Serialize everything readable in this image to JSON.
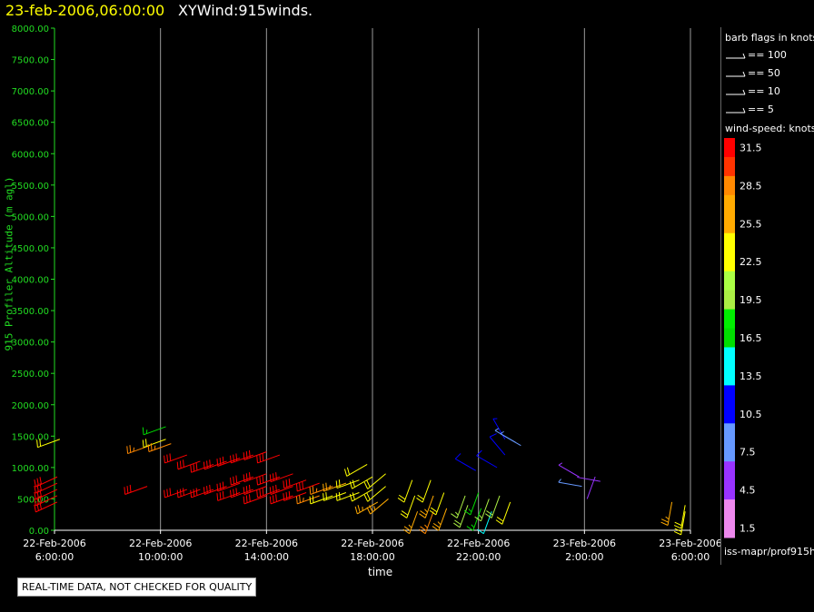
{
  "header": {
    "date": "23-feb-2006,06:00:00",
    "product": "XYWind:915winds."
  },
  "chart_data": {
    "type": "scatter",
    "ylabel": "915 Profiler Altitude (m agl)",
    "xlabel": "time",
    "ylim": [
      0,
      8000
    ],
    "y_ticks": [
      "0.00",
      "500.00",
      "1000.00",
      "1500.00",
      "2000.00",
      "2500.00",
      "3000.00",
      "3500.00",
      "4000.00",
      "4500.00",
      "5000.00",
      "5500.00",
      "6000.00",
      "6500.00",
      "7000.00",
      "7500.00",
      "8000.00"
    ],
    "x_ticks": [
      {
        "date": "22-Feb-2006",
        "time": "6:00:00"
      },
      {
        "date": "22-Feb-2006",
        "time": "10:00:00"
      },
      {
        "date": "22-Feb-2006",
        "time": "14:00:00"
      },
      {
        "date": "22-Feb-2006",
        "time": "18:00:00"
      },
      {
        "date": "22-Feb-2006",
        "time": "22:00:00"
      },
      {
        "date": "23-Feb-2006",
        "time": "2:00:00"
      },
      {
        "date": "23-Feb-2006",
        "time": "6:00:00"
      }
    ],
    "grid_vertical": true,
    "wind_barbs": [
      {
        "hour": 6.2,
        "alt": 1450,
        "speed": 21,
        "dir": 250
      },
      {
        "hour": 6.1,
        "alt": 850,
        "speed": 31,
        "dir": 245
      },
      {
        "hour": 6.1,
        "alt": 750,
        "speed": 31,
        "dir": 245
      },
      {
        "hour": 6.1,
        "alt": 650,
        "speed": 31,
        "dir": 245
      },
      {
        "hour": 6.1,
        "alt": 550,
        "speed": 31,
        "dir": 245
      },
      {
        "hour": 6.1,
        "alt": 450,
        "speed": 31,
        "dir": 245
      },
      {
        "hour": 9.5,
        "alt": 700,
        "speed": 31,
        "dir": 250
      },
      {
        "hour": 9.6,
        "alt": 1350,
        "speed": 28,
        "dir": 250
      },
      {
        "hour": 10.2,
        "alt": 1650,
        "speed": 17,
        "dir": 250
      },
      {
        "hour": 10.2,
        "alt": 1450,
        "speed": 22,
        "dir": 250
      },
      {
        "hour": 10.4,
        "alt": 1380,
        "speed": 28,
        "dir": 250
      },
      {
        "hour": 11.0,
        "alt": 1200,
        "speed": 31,
        "dir": 250
      },
      {
        "hour": 11.5,
        "alt": 1100,
        "speed": 31,
        "dir": 250
      },
      {
        "hour": 12.0,
        "alt": 1050,
        "speed": 31,
        "dir": 250
      },
      {
        "hour": 12.5,
        "alt": 1100,
        "speed": 31,
        "dir": 250
      },
      {
        "hour": 13.0,
        "alt": 1150,
        "speed": 31,
        "dir": 250
      },
      {
        "hour": 13.5,
        "alt": 1200,
        "speed": 31,
        "dir": 250
      },
      {
        "hour": 14.0,
        "alt": 1250,
        "speed": 31,
        "dir": 250
      },
      {
        "hour": 14.5,
        "alt": 1200,
        "speed": 31,
        "dir": 250
      },
      {
        "hour": 11.0,
        "alt": 650,
        "speed": 31,
        "dir": 250
      },
      {
        "hour": 11.5,
        "alt": 650,
        "speed": 31,
        "dir": 250
      },
      {
        "hour": 12.0,
        "alt": 650,
        "speed": 31,
        "dir": 250
      },
      {
        "hour": 12.5,
        "alt": 700,
        "speed": 31,
        "dir": 250
      },
      {
        "hour": 13.0,
        "alt": 750,
        "speed": 31,
        "dir": 250
      },
      {
        "hour": 13.0,
        "alt": 600,
        "speed": 31,
        "dir": 250
      },
      {
        "hour": 13.5,
        "alt": 850,
        "speed": 31,
        "dir": 250
      },
      {
        "hour": 13.5,
        "alt": 650,
        "speed": 31,
        "dir": 250
      },
      {
        "hour": 14.0,
        "alt": 900,
        "speed": 31,
        "dir": 250
      },
      {
        "hour": 14.0,
        "alt": 700,
        "speed": 31,
        "dir": 250
      },
      {
        "hour": 14.0,
        "alt": 550,
        "speed": 31,
        "dir": 250
      },
      {
        "hour": 14.5,
        "alt": 850,
        "speed": 31,
        "dir": 250
      },
      {
        "hour": 14.5,
        "alt": 650,
        "speed": 31,
        "dir": 250
      },
      {
        "hour": 15.0,
        "alt": 900,
        "speed": 31,
        "dir": 250
      },
      {
        "hour": 15.0,
        "alt": 700,
        "speed": 31,
        "dir": 250
      },
      {
        "hour": 15.0,
        "alt": 550,
        "speed": 31,
        "dir": 250
      },
      {
        "hour": 15.5,
        "alt": 800,
        "speed": 31,
        "dir": 250
      },
      {
        "hour": 15.5,
        "alt": 600,
        "speed": 31,
        "dir": 250
      },
      {
        "hour": 16.0,
        "alt": 750,
        "speed": 31,
        "dir": 250
      },
      {
        "hour": 16.0,
        "alt": 550,
        "speed": 29,
        "dir": 250
      },
      {
        "hour": 16.5,
        "alt": 700,
        "speed": 28,
        "dir": 250
      },
      {
        "hour": 16.5,
        "alt": 550,
        "speed": 22,
        "dir": 250
      },
      {
        "hour": 17.0,
        "alt": 750,
        "speed": 26,
        "dir": 250
      },
      {
        "hour": 17.0,
        "alt": 600,
        "speed": 23,
        "dir": 250
      },
      {
        "hour": 17.5,
        "alt": 800,
        "speed": 22,
        "dir": 250
      },
      {
        "hour": 17.5,
        "alt": 600,
        "speed": 22,
        "dir": 250
      },
      {
        "hour": 17.8,
        "alt": 1050,
        "speed": 22,
        "dir": 240
      },
      {
        "hour": 18.0,
        "alt": 850,
        "speed": 22,
        "dir": 240
      },
      {
        "hour": 18.0,
        "alt": 650,
        "speed": 23,
        "dir": 240
      },
      {
        "hour": 18.2,
        "alt": 450,
        "speed": 26,
        "dir": 240
      },
      {
        "hour": 18.5,
        "alt": 900,
        "speed": 22,
        "dir": 230
      },
      {
        "hour": 18.5,
        "alt": 700,
        "speed": 22,
        "dir": 230
      },
      {
        "hour": 18.6,
        "alt": 500,
        "speed": 25,
        "dir": 230
      },
      {
        "hour": 19.5,
        "alt": 800,
        "speed": 22,
        "dir": 200
      },
      {
        "hour": 19.6,
        "alt": 550,
        "speed": 23,
        "dir": 200
      },
      {
        "hour": 19.7,
        "alt": 300,
        "speed": 25,
        "dir": 200
      },
      {
        "hour": 20.2,
        "alt": 800,
        "speed": 22,
        "dir": 200
      },
      {
        "hour": 20.3,
        "alt": 550,
        "speed": 25,
        "dir": 200
      },
      {
        "hour": 20.3,
        "alt": 300,
        "speed": 28,
        "dir": 200
      },
      {
        "hour": 20.7,
        "alt": 600,
        "speed": 22,
        "dir": 200
      },
      {
        "hour": 20.8,
        "alt": 350,
        "speed": 26,
        "dir": 200
      },
      {
        "hour": 21.5,
        "alt": 550,
        "speed": 19,
        "dir": 200
      },
      {
        "hour": 21.6,
        "alt": 400,
        "speed": 20,
        "dir": 200
      },
      {
        "hour": 21.9,
        "alt": 950,
        "speed": 10,
        "dir": 300
      },
      {
        "hour": 22.0,
        "alt": 600,
        "speed": 15,
        "dir": 200
      },
      {
        "hour": 22.1,
        "alt": 350,
        "speed": 16,
        "dir": 200
      },
      {
        "hour": 22.4,
        "alt": 500,
        "speed": 18,
        "dir": 200
      },
      {
        "hour": 22.5,
        "alt": 300,
        "speed": 14,
        "dir": 200
      },
      {
        "hour": 22.7,
        "alt": 1000,
        "speed": 10,
        "dir": 300
      },
      {
        "hour": 22.8,
        "alt": 550,
        "speed": 20,
        "dir": 200
      },
      {
        "hour": 23.0,
        "alt": 1450,
        "speed": 9,
        "dir": 330
      },
      {
        "hour": 23.2,
        "alt": 450,
        "speed": 22,
        "dir": 200
      },
      {
        "hour": 23.4,
        "alt": 1400,
        "speed": 8,
        "dir": 300
      },
      {
        "hour": 23.6,
        "alt": 1350,
        "speed": 8,
        "dir": 300
      },
      {
        "hour": 23.0,
        "alt": 1200,
        "speed": 10,
        "dir": 320
      },
      {
        "hour": 1.8,
        "alt": 850,
        "speed": 5,
        "dir": 300
      },
      {
        "hour": 1.9,
        "alt": 700,
        "speed": 6,
        "dir": 280
      },
      {
        "hour": 2.1,
        "alt": 500,
        "speed": 4,
        "dir": 20
      },
      {
        "hour": 2.6,
        "alt": 780,
        "speed": 3,
        "dir": 280
      },
      {
        "hour": 5.3,
        "alt": 450,
        "speed": 25,
        "dir": 190
      },
      {
        "hour": 5.8,
        "alt": 400,
        "speed": 23,
        "dir": 190
      },
      {
        "hour": 5.8,
        "alt": 300,
        "speed": 23,
        "dir": 190
      }
    ]
  },
  "legend": {
    "barb_title": "barb flags in knots",
    "barbs": [
      "== 100",
      "== 50",
      "== 10",
      "== 5"
    ],
    "speed_title": "wind-speed: knots",
    "colorbar": [
      {
        "label": "31.5",
        "color": "#ff0000"
      },
      {
        "label": "",
        "color": "#ff3300"
      },
      {
        "label": "28.5",
        "color": "#ff8800"
      },
      {
        "label": "",
        "color": "#ffaa00"
      },
      {
        "label": "25.5",
        "color": "#ffaa00"
      },
      {
        "label": "",
        "color": "#ffff00"
      },
      {
        "label": "22.5",
        "color": "#ffff00"
      },
      {
        "label": "",
        "color": "#aaff44"
      },
      {
        "label": "19.5",
        "color": "#aaee44"
      },
      {
        "label": "",
        "color": "#00ee00"
      },
      {
        "label": "16.5",
        "color": "#00dd00"
      },
      {
        "label": "",
        "color": "#00ffff"
      },
      {
        "label": "13.5",
        "color": "#00ffff"
      },
      {
        "label": "",
        "color": "#0000ff"
      },
      {
        "label": "10.5",
        "color": "#0000ff"
      },
      {
        "label": "",
        "color": "#6699ff"
      },
      {
        "label": "7.5",
        "color": "#6699ff"
      },
      {
        "label": "",
        "color": "#9933ff"
      },
      {
        "label": "4.5",
        "color": "#9933ff"
      },
      {
        "label": "",
        "color": "#ee88ee"
      },
      {
        "label": "1.5",
        "color": "#ee88ee"
      }
    ],
    "source": "iss-mapr/prof915h"
  },
  "notice": "REAL-TIME DATA, NOT CHECKED FOR QUALITY"
}
